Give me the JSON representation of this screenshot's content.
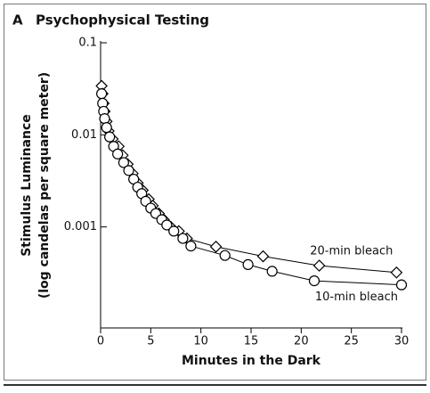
{
  "panel_label": "A",
  "chart_data": {
    "type": "line",
    "title": "Psychophysical Testing",
    "x_label": "Minutes in the Dark",
    "y_label": [
      "Stimulus Luminance",
      "(log candelas per square meter)"
    ],
    "xlim": [
      0,
      30
    ],
    "xticks": [
      0,
      5,
      10,
      15,
      20,
      25,
      30
    ],
    "ylim": [
      8e-05,
      0.1
    ],
    "yticks": [
      0.1,
      0.01,
      0.001
    ],
    "y_scale": "log",
    "series": [
      {
        "name": "20-min bleach",
        "marker": "diamond",
        "color": "#000000",
        "x": [
          0.1,
          0.2,
          0.3,
          0.4,
          0.6,
          0.8,
          1.2,
          1.8,
          2.2,
          2.7,
          3.2,
          3.7,
          4.2,
          4.8,
          5.2,
          5.8,
          6.3,
          7.0,
          7.8,
          8.6,
          11.5,
          16.2,
          21.8,
          29.5
        ],
        "values": [
          0.034,
          0.028,
          0.022,
          0.018,
          0.014,
          0.011,
          0.009,
          0.0075,
          0.006,
          0.0048,
          0.0038,
          0.003,
          0.0025,
          0.002,
          0.0017,
          0.0014,
          0.0012,
          0.001,
          0.0009,
          0.00075,
          0.00061,
          0.00048,
          0.00038,
          0.00032
        ]
      },
      {
        "name": "10-min bleach",
        "marker": "circle",
        "color": "#000000",
        "x": [
          0.1,
          0.2,
          0.3,
          0.4,
          0.6,
          0.9,
          1.3,
          1.7,
          2.3,
          2.8,
          3.3,
          3.7,
          4.1,
          4.5,
          5.0,
          5.5,
          6.1,
          6.6,
          7.3,
          8.2,
          9.0,
          12.4,
          14.7,
          17.1,
          21.3,
          30
        ],
        "values": [
          0.028,
          0.022,
          0.018,
          0.015,
          0.012,
          0.0095,
          0.0075,
          0.0062,
          0.005,
          0.0041,
          0.0033,
          0.0027,
          0.0023,
          0.0019,
          0.0016,
          0.0014,
          0.0012,
          0.00105,
          0.0009,
          0.00075,
          0.00062,
          0.00049,
          0.00039,
          0.00033,
          0.00026,
          0.000235
        ]
      }
    ]
  }
}
